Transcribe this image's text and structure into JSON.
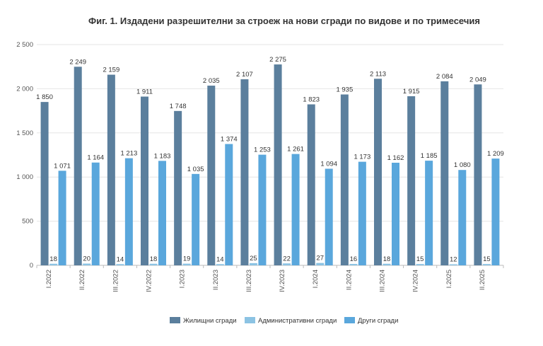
{
  "chart_data": {
    "type": "bar",
    "title": "Фиг. 1. Издадени разрешителни за строеж на нови сгради по видове и по тримесечия",
    "xlabel": "",
    "ylabel": "",
    "ylim": [
      0,
      2500
    ],
    "yticks": [
      0,
      500,
      1000,
      1500,
      2000,
      2500
    ],
    "ytick_labels": [
      "0",
      "500",
      "1 000",
      "1 500",
      "2 000",
      "2 500"
    ],
    "grid": true,
    "legend_position": "bottom",
    "categories": [
      "I.2022",
      "II.2022",
      "III.2022",
      "IV.2022",
      "I.2023",
      "II.2023",
      "III.2023",
      "IV.2023",
      "I.2024",
      "II.2024",
      "III.2024",
      "IV.2024",
      "I.2025",
      "II.2025"
    ],
    "series": [
      {
        "name": "Жилищни сгради",
        "color": "#5b7f9d",
        "values": [
          1850,
          2249,
          2159,
          1911,
          1748,
          2035,
          2107,
          2275,
          1823,
          1935,
          2113,
          1915,
          2084,
          2049
        ],
        "labels": [
          "1 850",
          "2 249",
          "2 159",
          "1 911",
          "1 748",
          "2 035",
          "2 107",
          "2 275",
          "1 823",
          "1 935",
          "2 113",
          "1 915",
          "2 084",
          "2 049"
        ]
      },
      {
        "name": "Административни сгради",
        "color": "#8cc3e3",
        "values": [
          18,
          20,
          14,
          18,
          19,
          14,
          25,
          22,
          27,
          16,
          18,
          15,
          12,
          15
        ],
        "labels": [
          "18",
          "20",
          "14",
          "18",
          "19",
          "14",
          "25",
          "22",
          "27",
          "16",
          "18",
          "15",
          "12",
          "15"
        ]
      },
      {
        "name": "Други сгради",
        "color": "#5aa7dc",
        "values": [
          1071,
          1164,
          1213,
          1183,
          1035,
          1374,
          1253,
          1261,
          1094,
          1173,
          1162,
          1185,
          1080,
          1209
        ],
        "labels": [
          "1 071",
          "1 164",
          "1 213",
          "1 183",
          "1 035",
          "1 374",
          "1 253",
          "1 261",
          "1 094",
          "1 173",
          "1 162",
          "1 185",
          "1 080",
          "1 209"
        ]
      }
    ]
  }
}
